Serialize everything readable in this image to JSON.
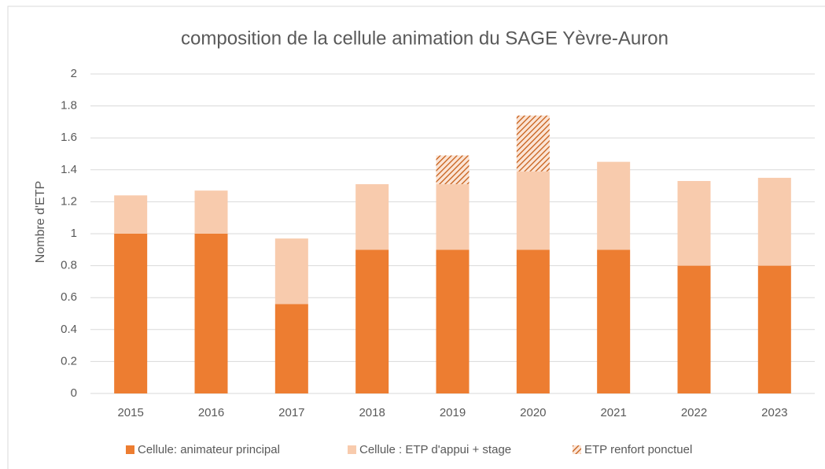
{
  "chart_data": {
    "type": "stacked_bar",
    "title": "composition de la cellule animation du SAGE Yèvre-Auron",
    "y_label": "Nombre d'ETP",
    "categories": [
      "2015",
      "2016",
      "2017",
      "2018",
      "2019",
      "2020",
      "2021",
      "2022",
      "2023"
    ],
    "series": [
      {
        "name": "Cellule: animateur principal",
        "color": "#ed7d31",
        "values": [
          1.0,
          1.0,
          0.56,
          0.9,
          0.9,
          0.9,
          0.9,
          0.8,
          0.8
        ]
      },
      {
        "name": "Cellule : ETP d'appui + stage",
        "color": "#f8cbad",
        "values": [
          0.24,
          0.27,
          0.41,
          0.41,
          0.41,
          0.49,
          0.55,
          0.53,
          0.55
        ]
      },
      {
        "name": "ETP renfort ponctuel",
        "color": "#c55a11",
        "pattern": "hatch",
        "values": [
          null,
          null,
          null,
          null,
          0.18,
          0.35,
          null,
          null,
          null
        ]
      }
    ],
    "ylim": [
      0,
      2
    ],
    "yticks": [
      0,
      0.2,
      0.4,
      0.6,
      0.8,
      1,
      1.2,
      1.4,
      1.6,
      1.8,
      2
    ],
    "grid": true,
    "legend": "bottom"
  }
}
